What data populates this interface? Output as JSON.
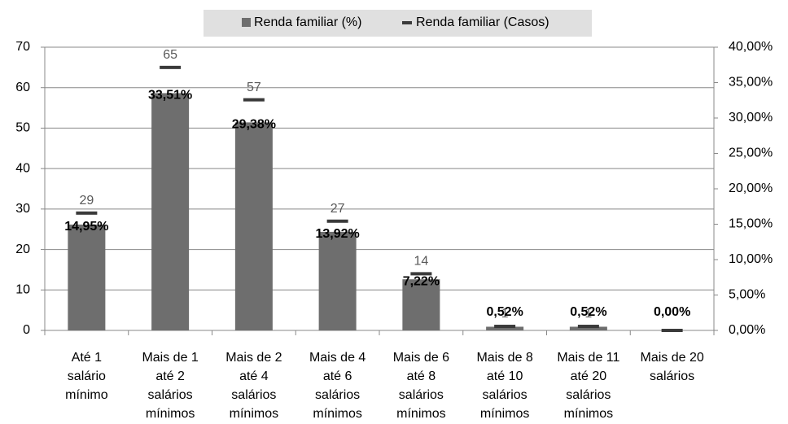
{
  "chart_data": {
    "type": "bar",
    "categories": [
      [
        "Até 1",
        "salário",
        "mínimo"
      ],
      [
        "Mais de 1",
        "até 2",
        "salários",
        "mínimos"
      ],
      [
        "Mais de 2",
        "até 4",
        "salários",
        "mínimos"
      ],
      [
        "Mais de 4",
        "até 6",
        "salários",
        "mínimos"
      ],
      [
        "Mais de 6",
        "até 8",
        "salários",
        "mínimos"
      ],
      [
        "Mais de 8",
        "até 10",
        "salários",
        "mínimos"
      ],
      [
        "Mais de 11",
        "até 20",
        "salários",
        "mínimos"
      ],
      [
        "Mais de 20",
        "salários"
      ]
    ],
    "series": [
      {
        "name": "Renda familiar (%)",
        "type": "bar",
        "axis": "y2",
        "color": "#6e6e6e",
        "values": [
          14.95,
          33.51,
          29.38,
          13.92,
          7.22,
          0.52,
          0.52,
          0
        ],
        "value_labels": [
          "14,95%",
          "33,51%",
          "29,38%",
          "13,92%",
          "7,22%",
          "0,52%",
          "0,52%",
          "0,00%"
        ]
      },
      {
        "name": "Renda familiar (Casos)",
        "type": "marker",
        "axis": "y",
        "color": "#3a3a3a",
        "values": [
          29,
          65,
          57,
          27,
          14,
          1,
          1,
          0
        ],
        "value_labels": [
          "29",
          "65",
          "57",
          "27",
          "14",
          "1",
          "1",
          null
        ]
      }
    ],
    "ylim": [
      0,
      70
    ],
    "yticks": [
      0,
      10,
      20,
      30,
      40,
      50,
      60,
      70
    ],
    "y2lim": [
      0,
      40
    ],
    "y2ticks": [
      {
        "value": 0,
        "label": "0,00%"
      },
      {
        "value": 5,
        "label": "5,00%"
      },
      {
        "value": 10,
        "label": "10,00%"
      },
      {
        "value": 15,
        "label": "15,00%"
      },
      {
        "value": 20,
        "label": "20,00%"
      },
      {
        "value": 25,
        "label": "25,00%"
      },
      {
        "value": 30,
        "label": "30,00%"
      },
      {
        "value": 35,
        "label": "35,00%"
      },
      {
        "value": 40,
        "label": "40,00%"
      }
    ],
    "grid": true,
    "legend": "top"
  }
}
